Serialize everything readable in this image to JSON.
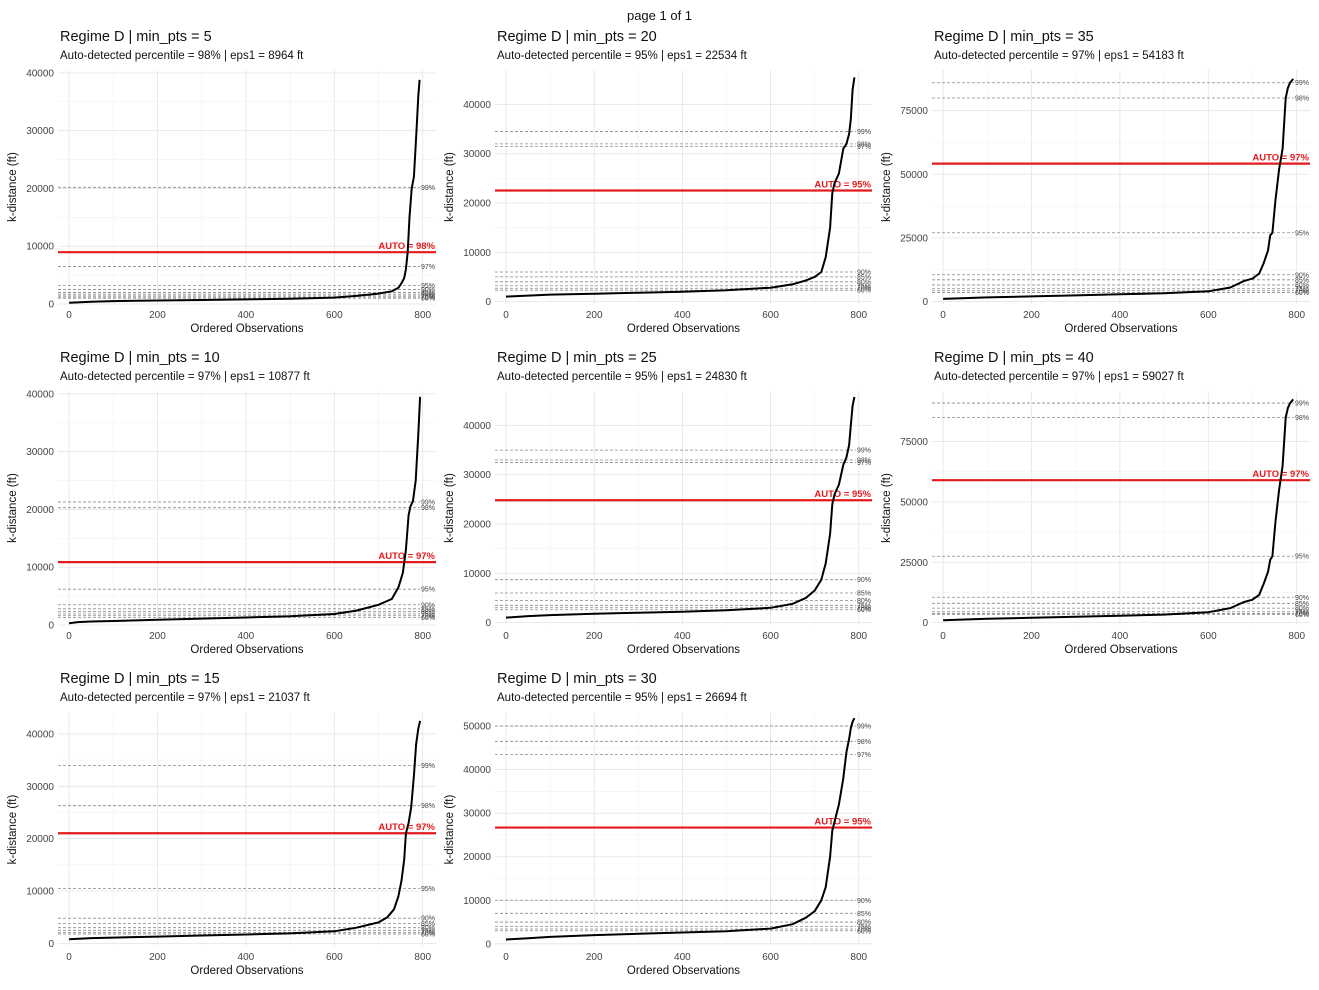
{
  "page_label": "page 1 of 1",
  "chart_data": [
    {
      "type": "line",
      "title": "Regime D | min_pts = 5",
      "subtitle": "Auto-detected percentile = 98% | eps1 = 8964 ft",
      "xlabel": "Ordered Observations",
      "ylabel": "k-distance (ft)",
      "xlim": [
        -25,
        830
      ],
      "ylim": [
        0,
        40500
      ],
      "xticks": [
        0,
        200,
        400,
        600,
        800
      ],
      "yticks": [
        0,
        10000,
        20000,
        30000,
        40000
      ],
      "auto_label": "AUTO = 98%",
      "eps": 8964,
      "series_color": "#000000",
      "auto_color": "#e41a1c",
      "percentile_lines": [
        {
          "label": "99%",
          "value": 20200
        },
        {
          "label": "98%",
          "value": 8964
        },
        {
          "label": "97%",
          "value": 6500
        },
        {
          "label": "95%",
          "value": 3200
        },
        {
          "label": "90%",
          "value": 2500
        },
        {
          "label": "85%",
          "value": 2000
        },
        {
          "label": "80%",
          "value": 1700
        },
        {
          "label": "75%",
          "value": 1400
        },
        {
          "label": "70%",
          "value": 1200
        },
        {
          "label": "60%",
          "value": 1000
        }
      ],
      "x": [
        0,
        50,
        100,
        200,
        300,
        400,
        500,
        600,
        650,
        700,
        730,
        745,
        752,
        758,
        762,
        766,
        770,
        775,
        780,
        786,
        790,
        793
      ],
      "y": [
        200,
        400,
        500,
        600,
        700,
        800,
        900,
        1100,
        1400,
        1800,
        2200,
        2800,
        3600,
        4500,
        6000,
        9000,
        15000,
        20000,
        22000,
        30000,
        36000,
        38800
      ]
    },
    {
      "type": "line",
      "title": "Regime D | min_pts = 20",
      "subtitle": "Auto-detected percentile = 95% | eps1 = 22534 ft",
      "xlabel": "Ordered Observations",
      "ylabel": "k-distance (ft)",
      "xlim": [
        -25,
        830
      ],
      "ylim": [
        -500,
        47000
      ],
      "xticks": [
        0,
        200,
        400,
        600,
        800
      ],
      "yticks": [
        0,
        10000,
        20000,
        30000,
        40000
      ],
      "auto_label": "AUTO = 95%",
      "eps": 22534,
      "series_color": "#000000",
      "auto_color": "#e41a1c",
      "percentile_lines": [
        {
          "label": "99%",
          "value": 34500
        },
        {
          "label": "98%",
          "value": 32000
        },
        {
          "label": "97%",
          "value": 31500
        },
        {
          "label": "95%",
          "value": 22534
        },
        {
          "label": "90%",
          "value": 6000
        },
        {
          "label": "85%",
          "value": 5000
        },
        {
          "label": "80%",
          "value": 4000
        },
        {
          "label": "75%",
          "value": 3200
        },
        {
          "label": "70%",
          "value": 2700
        },
        {
          "label": "60%",
          "value": 2300
        }
      ],
      "x": [
        0,
        50,
        100,
        200,
        300,
        400,
        500,
        600,
        650,
        680,
        700,
        715,
        725,
        735,
        740,
        745,
        755,
        765,
        772,
        778,
        782,
        786,
        790
      ],
      "y": [
        1000,
        1200,
        1400,
        1600,
        1800,
        2000,
        2300,
        2800,
        3500,
        4300,
        5000,
        6000,
        9000,
        15000,
        22000,
        24000,
        26000,
        31000,
        32000,
        34000,
        37000,
        43000,
        45500
      ]
    },
    {
      "type": "line",
      "title": "Regime D | min_pts = 35",
      "subtitle": "Auto-detected percentile = 97% | eps1 = 54183 ft",
      "xlabel": "Ordered Observations",
      "ylabel": "k-distance (ft)",
      "xlim": [
        -25,
        830
      ],
      "ylim": [
        -1000,
        91000
      ],
      "xticks": [
        0,
        200,
        400,
        600,
        800
      ],
      "yticks": [
        0,
        25000,
        50000,
        75000
      ],
      "auto_label": "AUTO = 97%",
      "eps": 54183,
      "series_color": "#000000",
      "auto_color": "#e41a1c",
      "percentile_lines": [
        {
          "label": "99%",
          "value": 86000
        },
        {
          "label": "98%",
          "value": 80000
        },
        {
          "label": "97%",
          "value": 54183
        },
        {
          "label": "95%",
          "value": 27000
        },
        {
          "label": "90%",
          "value": 10500
        },
        {
          "label": "85%",
          "value": 8500
        },
        {
          "label": "80%",
          "value": 6500
        },
        {
          "label": "75%",
          "value": 5000
        },
        {
          "label": "70%",
          "value": 4200
        },
        {
          "label": "60%",
          "value": 3500
        }
      ],
      "x": [
        0,
        50,
        100,
        200,
        300,
        400,
        500,
        600,
        650,
        680,
        700,
        715,
        725,
        735,
        740,
        745,
        752,
        760,
        768,
        775,
        780,
        785,
        792
      ],
      "y": [
        1000,
        1300,
        1600,
        2000,
        2400,
        2800,
        3200,
        4000,
        5500,
        8000,
        9000,
        11000,
        15000,
        20000,
        26000,
        27000,
        40000,
        52000,
        60000,
        80000,
        84000,
        86000,
        87500
      ]
    },
    {
      "type": "line",
      "title": "Regime D | min_pts = 10",
      "subtitle": "Auto-detected percentile = 97% | eps1 = 10877 ft",
      "xlabel": "Ordered Observations",
      "ylabel": "k-distance (ft)",
      "xlim": [
        -25,
        830
      ],
      "ylim": [
        0,
        40500
      ],
      "xticks": [
        0,
        200,
        400,
        600,
        800
      ],
      "yticks": [
        0,
        10000,
        20000,
        30000,
        40000
      ],
      "auto_label": "AUTO = 97%",
      "eps": 10877,
      "series_color": "#000000",
      "auto_color": "#e41a1c",
      "percentile_lines": [
        {
          "label": "99%",
          "value": 21300
        },
        {
          "label": "98%",
          "value": 20300
        },
        {
          "label": "97%",
          "value": 10877
        },
        {
          "label": "95%",
          "value": 6200
        },
        {
          "label": "90%",
          "value": 3500
        },
        {
          "label": "85%",
          "value": 2800
        },
        {
          "label": "80%",
          "value": 2300
        },
        {
          "label": "75%",
          "value": 1900
        },
        {
          "label": "70%",
          "value": 1600
        },
        {
          "label": "60%",
          "value": 1300
        }
      ],
      "x": [
        0,
        20,
        50,
        100,
        200,
        300,
        400,
        500,
        600,
        650,
        700,
        730,
        745,
        755,
        762,
        768,
        772,
        778,
        784,
        790,
        794
      ],
      "y": [
        300,
        500,
        600,
        700,
        900,
        1100,
        1300,
        1500,
        1900,
        2500,
        3500,
        4500,
        6500,
        9000,
        13000,
        19000,
        20500,
        21500,
        25000,
        33000,
        39500
      ]
    },
    {
      "type": "line",
      "title": "Regime D | min_pts = 25",
      "subtitle": "Auto-detected percentile = 95% | eps1 = 24830 ft",
      "xlabel": "Ordered Observations",
      "ylabel": "k-distance (ft)",
      "xlim": [
        -25,
        830
      ],
      "ylim": [
        -500,
        47000
      ],
      "xticks": [
        0,
        200,
        400,
        600,
        800
      ],
      "yticks": [
        0,
        10000,
        20000,
        30000,
        40000
      ],
      "auto_label": "AUTO = 95%",
      "eps": 24830,
      "series_color": "#000000",
      "auto_color": "#e41a1c",
      "percentile_lines": [
        {
          "label": "99%",
          "value": 35000
        },
        {
          "label": "98%",
          "value": 33000
        },
        {
          "label": "97%",
          "value": 32500
        },
        {
          "label": "95%",
          "value": 24830
        },
        {
          "label": "90%",
          "value": 8700
        },
        {
          "label": "85%",
          "value": 6000
        },
        {
          "label": "80%",
          "value": 4500
        },
        {
          "label": "75%",
          "value": 3500
        },
        {
          "label": "70%",
          "value": 3000
        },
        {
          "label": "60%",
          "value": 2600
        }
      ],
      "x": [
        0,
        50,
        100,
        200,
        300,
        400,
        500,
        600,
        650,
        680,
        700,
        715,
        725,
        735,
        740,
        745,
        755,
        765,
        772,
        778,
        782,
        786,
        790
      ],
      "y": [
        1000,
        1300,
        1500,
        1800,
        2000,
        2200,
        2500,
        3000,
        3800,
        5000,
        6500,
        8700,
        12000,
        18000,
        24000,
        26000,
        28000,
        32000,
        33500,
        36000,
        40000,
        44000,
        45800
      ]
    },
    {
      "type": "line",
      "title": "Regime D | min_pts = 40",
      "subtitle": "Auto-detected percentile = 97% | eps1 = 59027 ft",
      "xlabel": "Ordered Observations",
      "ylabel": "k-distance (ft)",
      "xlim": [
        -25,
        830
      ],
      "ylim": [
        -1000,
        96000
      ],
      "xticks": [
        0,
        200,
        400,
        600,
        800
      ],
      "yticks": [
        0,
        25000,
        50000,
        75000
      ],
      "auto_label": "AUTO = 97%",
      "eps": 59027,
      "series_color": "#000000",
      "auto_color": "#e41a1c",
      "percentile_lines": [
        {
          "label": "99%",
          "value": 91000
        },
        {
          "label": "98%",
          "value": 85000
        },
        {
          "label": "97%",
          "value": 59027
        },
        {
          "label": "95%",
          "value": 27500
        },
        {
          "label": "90%",
          "value": 10500
        },
        {
          "label": "85%",
          "value": 8000
        },
        {
          "label": "80%",
          "value": 6000
        },
        {
          "label": "75%",
          "value": 4500
        },
        {
          "label": "70%",
          "value": 3800
        },
        {
          "label": "60%",
          "value": 3300
        }
      ],
      "x": [
        0,
        50,
        100,
        200,
        300,
        400,
        500,
        600,
        650,
        680,
        700,
        715,
        725,
        735,
        740,
        745,
        752,
        760,
        768,
        775,
        780,
        785,
        792
      ],
      "y": [
        1000,
        1300,
        1600,
        2000,
        2400,
        2800,
        3300,
        4300,
        6000,
        8500,
        9500,
        11500,
        16000,
        21000,
        26000,
        27500,
        42000,
        55000,
        65000,
        85000,
        89000,
        91000,
        92500
      ]
    },
    {
      "type": "line",
      "title": "Regime D | min_pts = 15",
      "subtitle": "Auto-detected percentile = 97% | eps1 = 21037 ft",
      "xlabel": "Ordered Observations",
      "ylabel": "k-distance (ft)",
      "xlim": [
        -25,
        830
      ],
      "ylim": [
        -500,
        44000
      ],
      "xticks": [
        0,
        200,
        400,
        600,
        800
      ],
      "yticks": [
        0,
        10000,
        20000,
        30000,
        40000
      ],
      "auto_label": "AUTO = 97%",
      "eps": 21037,
      "series_color": "#000000",
      "auto_color": "#e41a1c",
      "percentile_lines": [
        {
          "label": "99%",
          "value": 34000
        },
        {
          "label": "98%",
          "value": 26300
        },
        {
          "label": "97%",
          "value": 21037
        },
        {
          "label": "95%",
          "value": 10500
        },
        {
          "label": "90%",
          "value": 4800
        },
        {
          "label": "85%",
          "value": 3800
        },
        {
          "label": "80%",
          "value": 3000
        },
        {
          "label": "75%",
          "value": 2500
        },
        {
          "label": "70%",
          "value": 2100
        },
        {
          "label": "60%",
          "value": 1800
        }
      ],
      "x": [
        0,
        50,
        100,
        200,
        300,
        400,
        500,
        600,
        650,
        700,
        720,
        735,
        745,
        752,
        758,
        762,
        768,
        774,
        780,
        785,
        790,
        794
      ],
      "y": [
        800,
        1000,
        1100,
        1300,
        1500,
        1700,
        1900,
        2300,
        3000,
        4000,
        5000,
        6500,
        9000,
        12000,
        16000,
        21000,
        23000,
        26000,
        32000,
        38000,
        41000,
        42500
      ]
    },
    {
      "type": "line",
      "title": "Regime D | min_pts = 30",
      "subtitle": "Auto-detected percentile = 95% | eps1 = 26694 ft",
      "xlabel": "Ordered Observations",
      "ylabel": "k-distance (ft)",
      "xlim": [
        -25,
        830
      ],
      "ylim": [
        -500,
        53000
      ],
      "xticks": [
        0,
        200,
        400,
        600,
        800
      ],
      "yticks": [
        0,
        10000,
        20000,
        30000,
        40000,
        50000
      ],
      "auto_label": "AUTO = 95%",
      "eps": 26694,
      "series_color": "#000000",
      "auto_color": "#e41a1c",
      "percentile_lines": [
        {
          "label": "99%",
          "value": 50000
        },
        {
          "label": "98%",
          "value": 46500
        },
        {
          "label": "97%",
          "value": 43500
        },
        {
          "label": "95%",
          "value": 26694
        },
        {
          "label": "90%",
          "value": 10000
        },
        {
          "label": "85%",
          "value": 7000
        },
        {
          "label": "80%",
          "value": 5000
        },
        {
          "label": "75%",
          "value": 4000
        },
        {
          "label": "70%",
          "value": 3400
        },
        {
          "label": "60%",
          "value": 3000
        }
      ],
      "x": [
        0,
        50,
        100,
        200,
        300,
        400,
        500,
        600,
        650,
        680,
        700,
        715,
        725,
        735,
        740,
        745,
        755,
        765,
        772,
        778,
        782,
        786,
        790
      ],
      "y": [
        1000,
        1300,
        1600,
        2000,
        2300,
        2600,
        2900,
        3500,
        4500,
        6000,
        7500,
        10000,
        13000,
        20000,
        26000,
        28000,
        32000,
        38000,
        44000,
        47000,
        49500,
        51000,
        51800
      ]
    }
  ]
}
